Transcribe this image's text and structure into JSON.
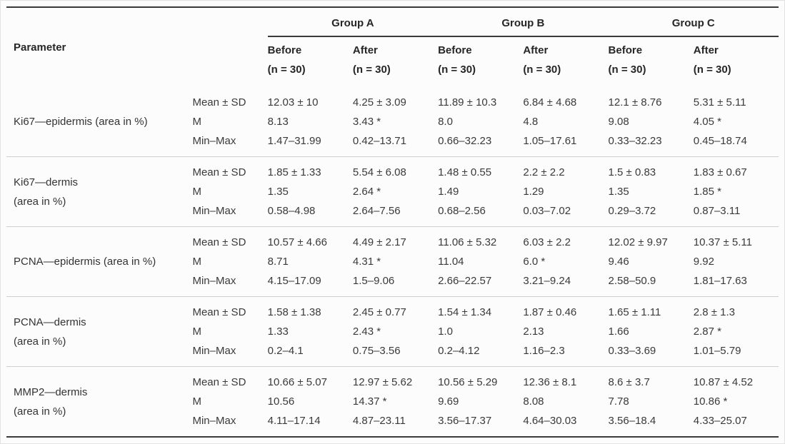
{
  "table": {
    "parameter_label": "Parameter",
    "stat_labels": [
      "Mean ± SD",
      "M",
      "Min–Max"
    ],
    "groups": [
      {
        "label": "Group A",
        "before": {
          "label": "Before",
          "n": "(n = 30)"
        },
        "after": {
          "label": "After",
          "n": "(n = 30)"
        }
      },
      {
        "label": "Group B",
        "before": {
          "label": "Before",
          "n": "(n = 30)"
        },
        "after": {
          "label": "After",
          "n": "(n = 30)"
        }
      },
      {
        "label": "Group C",
        "before": {
          "label": "Before",
          "n": "(n = 30)"
        },
        "after": {
          "label": "After",
          "n": "(n = 30)"
        }
      }
    ],
    "rows": [
      {
        "parameter_lines": [
          "Ki67—epidermis (area in %)"
        ],
        "values": [
          [
            "12.03 ± 10",
            "8.13",
            "1.47–31.99"
          ],
          [
            "4.25 ± 3.09",
            "3.43 *",
            "0.42–13.71"
          ],
          [
            "11.89 ± 10.3",
            "8.0",
            "0.66–32.23"
          ],
          [
            "6.84 ± 4.68",
            "4.8",
            "1.05–17.61"
          ],
          [
            "12.1 ± 8.76",
            "9.08",
            "0.33–32.23"
          ],
          [
            "5.31 ± 5.11",
            "4.05 *",
            "0.45–18.74"
          ]
        ]
      },
      {
        "parameter_lines": [
          "Ki67—dermis",
          "(area in %)"
        ],
        "values": [
          [
            "1.85 ± 1.33",
            "1.35",
            "0.58–4.98"
          ],
          [
            "5.54 ± 6.08",
            "2.64 *",
            "2.64–7.56"
          ],
          [
            "1.48 ± 0.55",
            "1.49",
            "0.68–2.56"
          ],
          [
            "2.2 ± 2.2",
            "1.29",
            "0.03–7.02"
          ],
          [
            "1.5 ± 0.83",
            "1.35",
            "0.29–3.72"
          ],
          [
            "1.83 ± 0.67",
            "1.85 *",
            "0.87–3.11"
          ]
        ]
      },
      {
        "parameter_lines": [
          "PCNA—epidermis (area in %)"
        ],
        "values": [
          [
            "10.57 ± 4.66",
            "8.71",
            "4.15–17.09"
          ],
          [
            "4.49 ± 2.17",
            "4.31 *",
            "1.5–9.06"
          ],
          [
            "11.06 ± 5.32",
            "11.04",
            "2.66–22.57"
          ],
          [
            "6.03 ± 2.2",
            "6.0 *",
            "3.21–9.24"
          ],
          [
            "12.02 ± 9.97",
            "9.46",
            "2.58–50.9"
          ],
          [
            "10.37 ± 5.11",
            "9.92",
            "1.81–17.63"
          ]
        ]
      },
      {
        "parameter_lines": [
          "PCNA—dermis",
          "(area in %)"
        ],
        "values": [
          [
            "1.58 ± 1.38",
            "1.33",
            "0.2–4.1"
          ],
          [
            "2.45 ± 0.77",
            "2.43 *",
            "0.75–3.56"
          ],
          [
            "1.54 ± 1.34",
            "1.0",
            "0.2–4.12"
          ],
          [
            "1.87 ± 0.46",
            "2.13",
            "1.16–2.3"
          ],
          [
            "1.65 ± 1.11",
            "1.66",
            "0.33–3.69"
          ],
          [
            "2.8 ± 1.3",
            "2.87 *",
            "1.01–5.79"
          ]
        ]
      },
      {
        "parameter_lines": [
          "MMP2—dermis",
          "(area in %)"
        ],
        "values": [
          [
            "10.66 ± 5.07",
            "10.56",
            "4.11–17.14"
          ],
          [
            "12.97 ± 5.62",
            "14.37 *",
            "4.87–23.11"
          ],
          [
            "10.56 ± 5.29",
            "9.69",
            "3.56–17.37"
          ],
          [
            "12.36 ± 8.1",
            "8.08",
            "4.64–30.03"
          ],
          [
            "8.6 ± 3.7",
            "7.78",
            "3.56–18.4"
          ],
          [
            "10.87 ± 4.52",
            "10.86 *",
            "4.33–25.07"
          ]
        ]
      }
    ]
  }
}
